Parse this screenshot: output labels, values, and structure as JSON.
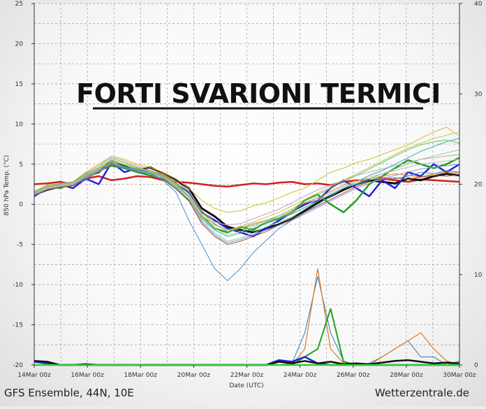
{
  "overlay_title": "FORTI SVARIONI TERMICI",
  "footer": {
    "left": "GFS Ensemble, 44N, 10E",
    "right": "Wetterzentrale.de"
  },
  "chart_data": {
    "type": "line",
    "xlabel": "Date (UTC)",
    "ylabel": "850 hPa Temp. (°C)",
    "x_tick_labels": [
      "14Mar 00z",
      "16Mar 00z",
      "18Mar 00z",
      "20Mar 00z",
      "22Mar 00z",
      "24Mar 00z",
      "26Mar 00z",
      "28Mar 00z",
      "30Mar 00z"
    ],
    "x_range_days": [
      0,
      16
    ],
    "ylim": [
      -20,
      25
    ],
    "y_ticks": [
      -20,
      -15,
      -10,
      -5,
      0,
      5,
      10,
      15,
      20,
      25
    ],
    "y2lim": [
      0,
      40
    ],
    "y2_ticks": [
      0,
      10,
      20,
      30,
      40
    ],
    "grid": true,
    "series": [
      {
        "color": "#d22020",
        "width": 2.5,
        "values": [
          2.5,
          2.6,
          2.8,
          2.5,
          3.2,
          3.5,
          3.0,
          3.2,
          3.5,
          3.4,
          3.0,
          2.8,
          2.7,
          2.5,
          2.3,
          2.2,
          2.4,
          2.6,
          2.5,
          2.7,
          2.8,
          2.5,
          2.6,
          2.4,
          2.8,
          3.0,
          2.9,
          3.2,
          3.0,
          2.8,
          3.1,
          3.0,
          2.9,
          2.8
        ]
      },
      {
        "color": "#111111",
        "width": 3,
        "values": [
          1.2,
          1.8,
          2.2,
          2.4,
          3.5,
          4.0,
          5.5,
          4.8,
          4.2,
          4.6,
          3.8,
          3.0,
          2.0,
          -0.5,
          -1.5,
          -2.8,
          -3.2,
          -3.5,
          -3.0,
          -2.5,
          -1.8,
          -0.8,
          0.2,
          1.0,
          1.8,
          2.5,
          3.0,
          2.8,
          2.6,
          3.2,
          3.0,
          3.5,
          3.8,
          3.6
        ]
      },
      {
        "color": "#2222dd",
        "width": 2.5,
        "values": [
          1.0,
          2.0,
          2.5,
          2.0,
          3.2,
          2.5,
          5.2,
          4.0,
          4.5,
          4.0,
          3.5,
          2.5,
          1.5,
          -1.0,
          -2.0,
          -3.0,
          -3.5,
          -4.0,
          -3.0,
          -2.0,
          -1.0,
          0.0,
          0.5,
          2.0,
          3.0,
          2.0,
          1.0,
          3.0,
          2.0,
          4.0,
          3.5,
          5.0,
          4.0,
          5.0
        ]
      },
      {
        "color": "#22a022",
        "width": 2.5,
        "values": [
          1.5,
          2.2,
          2.0,
          2.6,
          3.8,
          4.2,
          4.8,
          4.5,
          4.0,
          3.6,
          3.2,
          2.0,
          0.5,
          -1.5,
          -3.0,
          -3.5,
          -2.8,
          -3.2,
          -2.2,
          -1.8,
          -1.0,
          0.5,
          1.2,
          0.0,
          -1.0,
          0.5,
          2.5,
          3.5,
          4.5,
          5.5,
          5.0,
          4.5,
          5.0,
          5.8
        ]
      },
      {
        "color": "#4a8ec8",
        "width": 1,
        "values": [
          1.2,
          2.0,
          2.3,
          2.5,
          3.0,
          4.5,
          5.0,
          4.4,
          4.1,
          3.8,
          3.0,
          1.5,
          -2.0,
          -5.0,
          -8.0,
          -9.5,
          -8.0,
          -6.0,
          -4.5,
          -3.0,
          -2.0,
          -1.0,
          0.0,
          1.0,
          2.0,
          2.5,
          3.0,
          3.4,
          3.2,
          3.5,
          4.0,
          3.8,
          4.2,
          4.0
        ]
      },
      {
        "color": "#e07b20",
        "width": 1,
        "values": [
          1.4,
          2.1,
          2.4,
          2.6,
          3.6,
          4.4,
          5.3,
          4.9,
          4.4,
          4.2,
          3.6,
          2.6,
          1.0,
          -1.5,
          -2.5,
          -3.2,
          -3.0,
          -2.4,
          -2.0,
          -1.6,
          -0.8,
          0.2,
          0.8,
          1.6,
          2.4,
          3.0,
          3.2,
          3.5,
          3.8,
          3.6,
          3.4,
          3.8,
          4.0,
          3.9
        ]
      },
      {
        "color": "#d2c22a",
        "width": 1,
        "values": [
          1.6,
          2.4,
          2.6,
          2.8,
          4.0,
          5.0,
          6.0,
          5.6,
          5.0,
          4.6,
          4.0,
          3.2,
          2.0,
          0.5,
          -0.5,
          -1.0,
          -0.8,
          -0.2,
          0.2,
          0.8,
          1.5,
          2.0,
          3.0,
          4.0,
          4.5,
          5.2,
          5.6,
          6.2,
          6.8,
          7.4,
          8.2,
          9.0,
          9.6,
          8.5
        ]
      },
      {
        "color": "#8fd08f",
        "width": 1,
        "values": [
          1.3,
          1.9,
          2.2,
          2.4,
          3.4,
          4.2,
          5.4,
          4.9,
          4.3,
          4.0,
          3.4,
          2.2,
          0.8,
          -2.0,
          -3.6,
          -4.6,
          -4.2,
          -3.6,
          -2.8,
          -2.2,
          -1.6,
          -0.6,
          0.4,
          1.2,
          2.0,
          2.6,
          3.2,
          3.8,
          4.4,
          5.0,
          5.6,
          6.0,
          6.4,
          6.8
        ]
      },
      {
        "color": "#d898c0",
        "width": 1,
        "values": [
          1.5,
          2.2,
          2.5,
          2.7,
          3.9,
          4.8,
          6.0,
          5.4,
          4.8,
          4.4,
          3.8,
          2.9,
          1.6,
          -0.8,
          -2.2,
          -2.6,
          -2.4,
          -1.8,
          -1.2,
          -0.6,
          0.2,
          1.0,
          1.8,
          2.4,
          3.0,
          3.6,
          4.0,
          4.4,
          4.8,
          5.2,
          5.6,
          5.8,
          6.0,
          6.2
        ]
      },
      {
        "color": "#a0522d",
        "width": 1,
        "values": [
          1.1,
          1.8,
          2.1,
          2.3,
          3.2,
          4.0,
          5.0,
          4.6,
          4.2,
          3.9,
          3.1,
          1.9,
          0.4,
          -2.4,
          -4.0,
          -5.0,
          -4.6,
          -4.0,
          -3.4,
          -2.6,
          -1.8,
          -1.0,
          -0.2,
          0.6,
          1.4,
          2.2,
          2.8,
          3.0,
          3.3,
          3.1,
          3.4,
          3.6,
          3.5,
          3.7
        ]
      },
      {
        "color": "#30b0b0",
        "width": 1,
        "values": [
          1.4,
          2.0,
          2.3,
          2.5,
          3.5,
          4.3,
          5.2,
          4.7,
          4.3,
          3.9,
          3.4,
          2.4,
          1.0,
          -1.8,
          -3.2,
          -4.0,
          -3.6,
          -3.0,
          -2.4,
          -1.8,
          -1.2,
          -0.4,
          0.4,
          1.2,
          2.0,
          2.8,
          3.6,
          4.2,
          5.0,
          5.8,
          6.6,
          7.2,
          7.8,
          8.2
        ]
      },
      {
        "color": "#6fbf4f",
        "width": 1,
        "values": [
          1.6,
          2.3,
          2.6,
          2.8,
          3.8,
          4.6,
          5.8,
          5.2,
          4.6,
          4.2,
          3.7,
          2.7,
          1.3,
          -1.0,
          -2.4,
          -3.4,
          -3.0,
          -2.6,
          -2.0,
          -1.4,
          -0.6,
          0.4,
          1.2,
          2.0,
          2.8,
          3.6,
          4.4,
          5.2,
          6.0,
          6.8,
          7.4,
          7.8,
          8.0,
          7.6
        ]
      },
      {
        "color": "#9090e0",
        "width": 1,
        "values": [
          1.2,
          1.9,
          2.2,
          2.4,
          3.3,
          4.1,
          5.1,
          4.6,
          4.2,
          3.8,
          3.2,
          2.0,
          0.6,
          -2.2,
          -3.8,
          -4.8,
          -4.4,
          -3.8,
          -3.2,
          -2.6,
          -2.0,
          -1.2,
          -0.4,
          0.4,
          1.2,
          2.0,
          2.6,
          3.2,
          3.6,
          4.0,
          4.4,
          4.6,
          4.8,
          5.0
        ]
      },
      {
        "color": "#c0c0c0",
        "width": 1,
        "values": [
          1.3,
          2.0,
          2.3,
          2.5,
          3.6,
          4.4,
          5.6,
          5.0,
          4.5,
          4.1,
          3.5,
          2.3,
          0.9,
          -1.6,
          -3.0,
          -3.8,
          -3.4,
          -2.8,
          -2.2,
          -1.6,
          -1.0,
          -0.2,
          0.6,
          1.4,
          2.2,
          2.8,
          3.4,
          3.8,
          4.2,
          4.6,
          5.0,
          5.2,
          5.4,
          5.6
        ]
      },
      {
        "color": "#b0d060",
        "width": 1,
        "values": [
          1.5,
          2.1,
          2.4,
          2.6,
          3.7,
          4.5,
          5.5,
          5.0,
          4.5,
          4.1,
          3.5,
          2.5,
          1.1,
          -1.2,
          -2.6,
          -3.2,
          -2.8,
          -2.2,
          -1.6,
          -1.0,
          -0.2,
          0.6,
          1.4,
          2.2,
          3.0,
          3.8,
          4.6,
          5.4,
          6.2,
          7.0,
          7.6,
          8.2,
          8.6,
          9.0
        ]
      },
      {
        "color": "#4a8ec8",
        "width": 1.2,
        "values": [
          -20,
          -20,
          -20,
          -20,
          -20,
          -20,
          -20,
          -20,
          -20,
          -20,
          -20,
          -20,
          -20,
          -20,
          -20,
          -20,
          -20,
          -20,
          -20,
          -20,
          -19.8,
          -16,
          -9,
          -16,
          -19.5,
          -20,
          -19.8,
          -19,
          -18,
          -17,
          -19,
          -19,
          -20,
          -19.5
        ]
      },
      {
        "color": "#e07b20",
        "width": 1.2,
        "values": [
          -20,
          -20,
          -20,
          -20,
          -20,
          -20,
          -20,
          -20,
          -20,
          -20,
          -20,
          -20,
          -20,
          -20,
          -20,
          -20,
          -20,
          -20,
          -20,
          -20,
          -20,
          -18,
          -8,
          -18,
          -19.8,
          -20,
          -20,
          -19,
          -18,
          -17,
          -16,
          -18,
          -19.5,
          -20
        ]
      },
      {
        "color": "#22a022",
        "width": 2,
        "values": [
          -20,
          -20,
          -20,
          -20,
          -20,
          -20,
          -20,
          -20,
          -20,
          -20,
          -20,
          -20,
          -20,
          -20,
          -20,
          -20,
          -20,
          -20,
          -20,
          -20,
          -20,
          -19,
          -18,
          -13,
          -19.6,
          -20,
          -20,
          -20,
          -20,
          -20,
          -20,
          -20,
          -20,
          -20
        ]
      },
      {
        "color": "#2222dd",
        "width": 2.5,
        "values": [
          -19.6,
          -19.8,
          -20,
          -20,
          -20,
          -20,
          -20,
          -20,
          -20,
          -20,
          -20,
          -20,
          -20,
          -20,
          -20,
          -20,
          -20,
          -20,
          -20,
          -19.4,
          -19.6,
          -19.0,
          -19.8,
          -20,
          -20,
          -20,
          -20,
          -20,
          -20,
          -20,
          -20,
          -20,
          -20,
          -20
        ]
      },
      {
        "color": "#111111",
        "width": 2.5,
        "values": [
          -19.5,
          -19.6,
          -20,
          -20,
          -19.9,
          -20,
          -20,
          -20,
          -20,
          -20,
          -20,
          -20,
          -20,
          -20,
          -20,
          -20,
          -20,
          -20,
          -20,
          -19.6,
          -19.8,
          -19.5,
          -19.8,
          -19.6,
          -19.9,
          -19.8,
          -19.9,
          -19.7,
          -19.5,
          -19.4,
          -19.6,
          -19.8,
          -19.7,
          -19.8
        ]
      }
    ]
  }
}
